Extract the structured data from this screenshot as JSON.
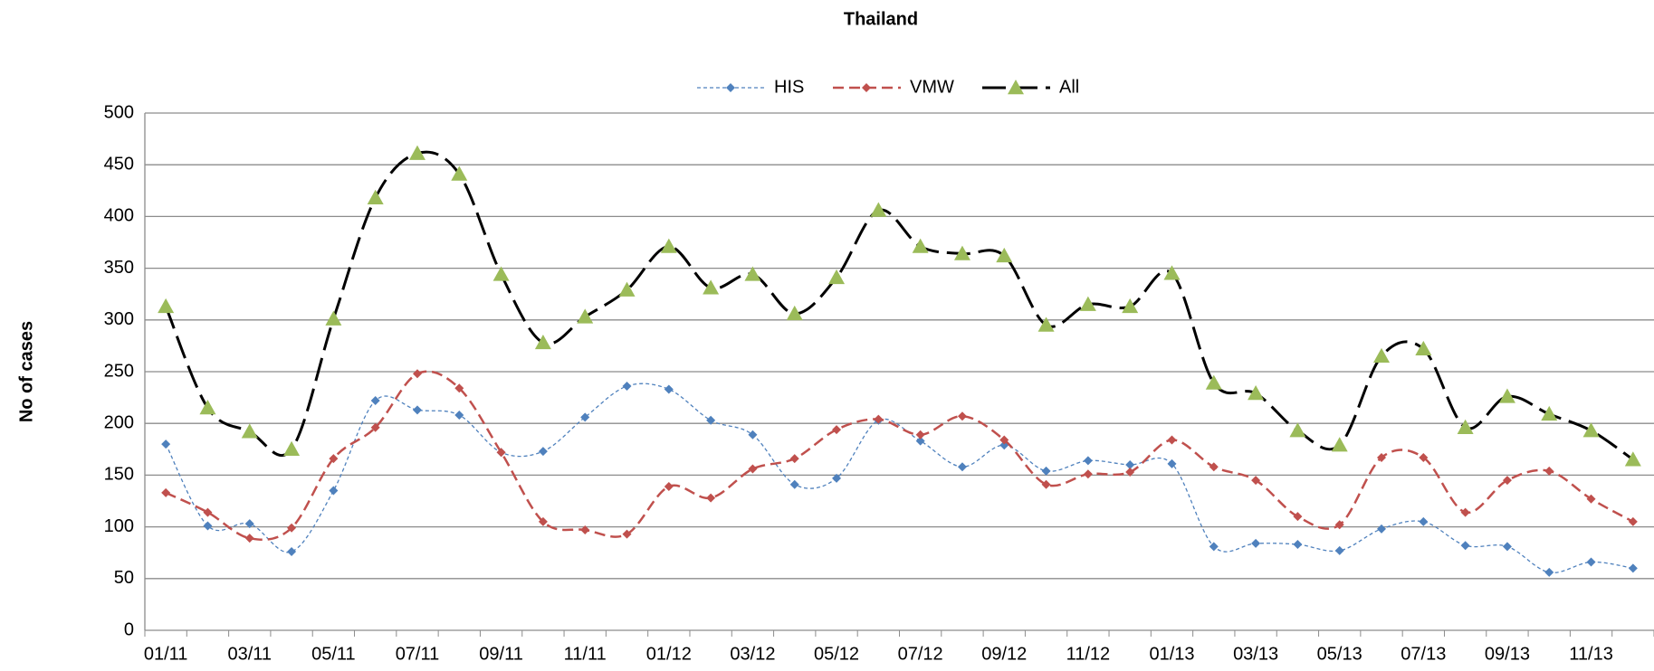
{
  "chart_data": {
    "type": "line",
    "title": "Thailand",
    "y_label": "No of cases",
    "categories": [
      "01/11",
      null,
      "03/11",
      null,
      "05/11",
      null,
      "07/11",
      null,
      "09/11",
      null,
      "11/11",
      null,
      "01/12",
      null,
      "03/12",
      null,
      "05/12",
      null,
      "07/12",
      null,
      "09/12",
      null,
      "11/12",
      null,
      "01/13",
      null,
      "03/13",
      null,
      "05/13",
      null,
      "07/13",
      null,
      "09/13",
      null,
      "11/13",
      null
    ],
    "series": [
      {
        "name": "HIS",
        "color": "#4f81bd",
        "values": [
          180,
          101,
          103,
          76,
          135,
          222,
          213,
          208,
          172,
          173,
          206,
          236,
          233,
          203,
          189,
          141,
          147,
          203,
          183,
          158,
          179,
          154,
          164,
          160,
          161,
          81,
          84,
          83,
          77,
          98,
          105,
          82,
          81,
          56,
          66,
          60
        ]
      },
      {
        "name": "VMW",
        "color": "#c0504d",
        "values": [
          133,
          114,
          89,
          99,
          166,
          196,
          248,
          234,
          172,
          105,
          97,
          93,
          139,
          128,
          156,
          166,
          194,
          204,
          189,
          207,
          184,
          141,
          151,
          153,
          184,
          158,
          145,
          110,
          102,
          167,
          167,
          114,
          145,
          154,
          127,
          105
        ]
      },
      {
        "name": "All",
        "color": "#000000",
        "marker_color": "#9bbb59",
        "values": [
          313,
          215,
          192,
          175,
          301,
          418,
          461,
          441,
          344,
          278,
          303,
          329,
          371,
          331,
          344,
          306,
          341,
          406,
          371,
          364,
          362,
          295,
          315,
          313,
          345,
          239,
          229,
          193,
          179,
          265,
          272,
          196,
          226,
          209,
          193,
          165
        ]
      }
    ],
    "ylim": [
      0,
      500
    ],
    "yticks": [
      0,
      50,
      100,
      150,
      200,
      250,
      300,
      350,
      400,
      450,
      500
    ],
    "grid": true,
    "legend": "top"
  }
}
